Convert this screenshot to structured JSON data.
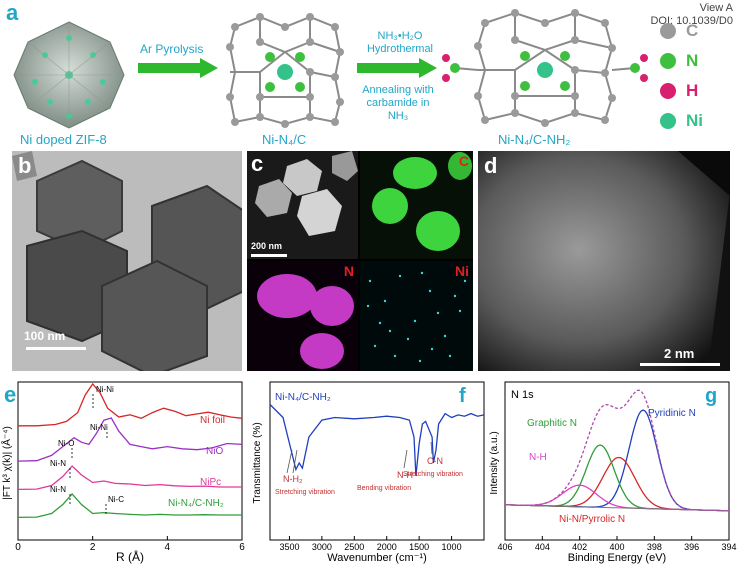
{
  "header": {
    "line1": "View A",
    "line2": "DOI: 10.1039/D0"
  },
  "panel_a": {
    "label": "a",
    "step1_caption": "Ni doped ZIF-8",
    "arrow1_text": "Ar Pyrolysis",
    "step2_caption": "Ni-N₄/C",
    "arrow2_top": "NH₃•H₂O",
    "arrow2_top2": "Hydrothermal",
    "arrow2_bottom1": "Annealing with",
    "arrow2_bottom2": "carbamide in NH₃",
    "step3_caption": "Ni-N₄/C-NH₂",
    "legend": [
      {
        "label": "C",
        "color": "#9a9a9a"
      },
      {
        "label": "N",
        "color": "#3fbf3f"
      },
      {
        "label": "H",
        "color": "#d9206e"
      },
      {
        "label": "Ni",
        "color": "#33c28a"
      }
    ]
  },
  "panel_b": {
    "label": "b",
    "scale": "100 nm"
  },
  "panel_c": {
    "label": "c",
    "scale": "200 nm",
    "maps": [
      "C",
      "N",
      "Ni"
    ]
  },
  "panel_d": {
    "label": "d",
    "scale": "2 nm"
  },
  "panel_e": {
    "label": "e",
    "ylabel": "|FT k³ χ(k)| (Å⁻⁴)",
    "xlabel": "R (Å)",
    "xticks": [
      "0",
      "2",
      "4",
      "6"
    ],
    "series": [
      "Ni foil",
      "NiO",
      "NiPc",
      "Ni-N₄/C-NH₂"
    ],
    "peak_labels": [
      "Ni-Ni",
      "Ni-Ni",
      "Ni-O",
      "Ni-N",
      "Ni-N",
      "Ni-C"
    ]
  },
  "panel_f": {
    "label": "f",
    "title": "Ni-N₄/C-NH₂",
    "ylabel": "Transmittance (%)",
    "xlabel": "Wavenumber (cm⁻¹)",
    "xticks": [
      "3500",
      "3000",
      "2500",
      "2000",
      "1500",
      "1000"
    ],
    "ann1": "N-H₂",
    "ann1_sub": "Stretching vibration",
    "ann2": "N-H",
    "ann2_sub": "Bending vibration",
    "ann3": "C-N",
    "ann3_sub": "Stretching vibration"
  },
  "panel_g": {
    "label": "g",
    "title": "N 1s",
    "ylabel": "Intensity (a.u.)",
    "xlabel": "Binding Energy (eV)",
    "xticks": [
      "406",
      "404",
      "402",
      "400",
      "398",
      "396",
      "394"
    ],
    "labels": [
      "Graphitic N",
      "Pyridinic N",
      "N-H",
      "Ni-N/Pyrrolic N"
    ]
  },
  "chart_data": [
    {
      "type": "line",
      "title": "",
      "xlabel": "R (Å)",
      "ylabel": "|FT k³ χ(k)| (Å⁻⁴)",
      "xlim": [
        0,
        6
      ],
      "series": [
        {
          "name": "Ni foil",
          "color": "#d62728",
          "x": [
            0,
            0.5,
            1.0,
            1.3,
            1.6,
            1.8,
            2.0,
            2.2,
            2.4,
            2.7,
            3.0,
            3.3,
            3.6,
            3.9,
            4.2,
            4.5,
            4.8,
            5.1,
            5.4,
            5.7,
            6.0
          ],
          "y": [
            0.05,
            0.05,
            0.08,
            0.15,
            0.35,
            0.75,
            1.0,
            0.8,
            0.45,
            0.25,
            0.3,
            0.22,
            0.35,
            0.45,
            0.38,
            0.28,
            0.32,
            0.36,
            0.3,
            0.25,
            0.22
          ]
        },
        {
          "name": "NiO",
          "color": "#9b30c8",
          "x": [
            0,
            0.5,
            0.9,
            1.2,
            1.5,
            1.7,
            1.9,
            2.1,
            2.3,
            2.5,
            2.7,
            3.0,
            3.3,
            3.6,
            4.0,
            4.4,
            4.8,
            5.2,
            5.6,
            6.0
          ],
          "y": [
            0.02,
            0.03,
            0.15,
            0.35,
            0.55,
            0.45,
            0.4,
            0.65,
            0.95,
            1.0,
            0.7,
            0.4,
            0.35,
            0.3,
            0.35,
            0.3,
            0.28,
            0.32,
            0.42,
            0.4
          ]
        },
        {
          "name": "NiPc",
          "color": "#e0389a",
          "x": [
            0,
            0.5,
            0.9,
            1.2,
            1.45,
            1.7,
            2.0,
            2.3,
            2.6,
            3.0,
            3.4,
            3.8,
            4.2,
            4.6,
            5.0,
            5.4,
            5.8,
            6.0
          ],
          "y": [
            0.02,
            0.03,
            0.15,
            0.45,
            0.8,
            0.5,
            0.25,
            0.3,
            0.22,
            0.2,
            0.15,
            0.18,
            0.14,
            0.12,
            0.13,
            0.1,
            0.1,
            0.1
          ]
        },
        {
          "name": "Ni-N₄/C-NH₂",
          "color": "#2e9e3a",
          "x": [
            0,
            0.5,
            0.9,
            1.2,
            1.45,
            1.7,
            2.0,
            2.3,
            2.6,
            3.0,
            3.4,
            3.8,
            4.2,
            4.6,
            5.0,
            5.4,
            5.8,
            6.0
          ],
          "y": [
            0.02,
            0.03,
            0.15,
            0.45,
            0.8,
            0.45,
            0.15,
            0.18,
            0.15,
            0.12,
            0.1,
            0.12,
            0.1,
            0.1,
            0.11,
            0.1,
            0.1,
            0.1
          ]
        }
      ]
    },
    {
      "type": "line",
      "title": "Ni-N₄/C-NH₂",
      "xlabel": "Wavenumber (cm⁻¹)",
      "ylabel": "Transmittance (%)",
      "xlim": [
        3800,
        500
      ],
      "series": [
        {
          "name": "",
          "color": "#1f3fbf",
          "x": [
            3800,
            3600,
            3450,
            3400,
            3350,
            3300,
            3200,
            3000,
            2800,
            2500,
            2200,
            2000,
            1800,
            1650,
            1580,
            1550,
            1500,
            1450,
            1400,
            1300,
            1280,
            1240,
            1200,
            1100,
            1000,
            900,
            800,
            700,
            600,
            500
          ],
          "y": [
            0.95,
            0.85,
            0.55,
            0.45,
            0.5,
            0.46,
            0.7,
            0.83,
            0.85,
            0.84,
            0.85,
            0.86,
            0.85,
            0.83,
            0.7,
            0.4,
            0.65,
            0.8,
            0.82,
            0.7,
            0.5,
            0.6,
            0.8,
            0.88,
            0.85,
            0.87,
            0.86,
            0.88,
            0.86,
            0.87
          ]
        }
      ]
    },
    {
      "type": "line",
      "title": "N 1s",
      "xlabel": "Binding Energy (eV)",
      "ylabel": "Intensity (a.u.)",
      "xlim": [
        406,
        394
      ],
      "series": [
        {
          "name": "Pyridinic N",
          "color": "#1f3fbf",
          "center": 398.6,
          "height": 0.82,
          "width": 0.75
        },
        {
          "name": "Ni-N/Pyrrolic N",
          "color": "#d62728",
          "center": 399.9,
          "height": 0.42,
          "width": 0.85
        },
        {
          "name": "Graphitic N",
          "color": "#2e9e3a",
          "center": 400.9,
          "height": 0.52,
          "width": 0.75
        },
        {
          "name": "N-H",
          "color": "#e040c8",
          "center": 402.0,
          "height": 0.18,
          "width": 0.9
        }
      ]
    }
  ]
}
